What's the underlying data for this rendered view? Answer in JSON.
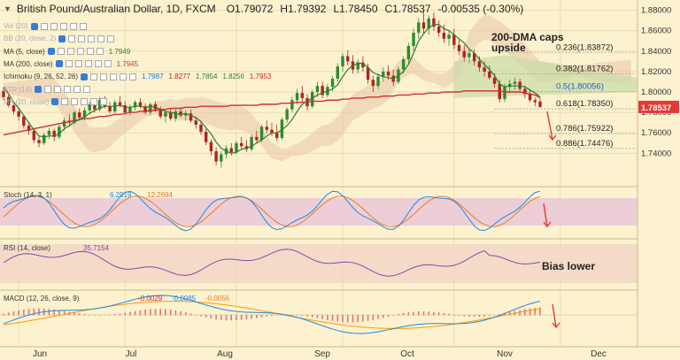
{
  "header": {
    "title": "British Pound/Australian Dollar, 1D, FXCM",
    "ohlc": [
      "O1.79072",
      "H1.79392",
      "L1.78450",
      "C1.78537",
      "-0.00535 (-0.30%)"
    ]
  },
  "overlays": [
    {
      "label": "Vol (20)",
      "values": []
    },
    {
      "label": "BB (20, close, 2)",
      "values": []
    },
    {
      "label": "MA (5, close)",
      "values": [
        "1.7949"
      ],
      "colors": [
        "#2e7d32"
      ]
    },
    {
      "label": "MA (200, close)",
      "values": [
        "1.7945"
      ],
      "colors": [
        "#d32f2f"
      ]
    },
    {
      "label": "Ichimoku (9, 26, 52, 26)",
      "values": [
        "1.7987",
        "1.8277",
        "1.7854",
        "1.8256",
        "1.7953"
      ],
      "colors": [
        "#1976d2",
        "#b71c1c",
        "#2e7d32",
        "#2e7d32",
        "#c62828"
      ]
    },
    {
      "label": "ATR (14)",
      "values": []
    },
    {
      "label": "MA (20, close)",
      "values": []
    }
  ],
  "price_axis": {
    "ticks": [
      "1.88000",
      "1.86000",
      "1.84000",
      "1.82000",
      "1.80000",
      "1.78000",
      "1.76000",
      "1.74000"
    ],
    "current": "1.78537"
  },
  "fib_levels": [
    "0.236(1.83872)",
    "0.382(1.81762)",
    "0.5(1.80056)",
    "0.618(1.78350)",
    "0.786(1.75922)",
    "0.886(1.74476)"
  ],
  "annotations": {
    "dma": "200-DMA caps\nupside",
    "bias": "Bias lower"
  },
  "stoch": {
    "label": "Stoch (14, 3, 1)",
    "k": "6.2919",
    "d": "12.2694",
    "ticks": [
      "100.0000",
      "50.0000",
      "0.0000"
    ]
  },
  "rsi": {
    "label": "RSI (14, close)",
    "value": "35.7154",
    "ticks": [
      "50.0000"
    ]
  },
  "macd": {
    "label": "MACD (12, 26, close, 9)",
    "values": [
      "-0.0029",
      "-0.0085",
      "-0.0056"
    ],
    "ticks": [
      "0.0000"
    ]
  },
  "x_axis": {
    "labels": [
      "Jun",
      "Jul",
      "Aug",
      "Sep",
      "Oct",
      "Nov",
      "Dec"
    ]
  },
  "colors": {
    "bull": "#2e8b2e",
    "bear": "#b22222",
    "ma5": "#2e7d32",
    "ma200": "#d32f2f",
    "cloud": "#e8c6a8",
    "cloud_bull": "#c9dba7",
    "stoch_zone": "#e8c4d8",
    "rsi_zone": "#f0d4c4",
    "current": "#e53935"
  },
  "chart_data": {
    "type": "candlestick",
    "x_range": [
      "2017-05-25",
      "2017-12-10"
    ],
    "ylim": [
      1.71,
      1.89
    ],
    "ohlc": [
      [
        1.801,
        1.804,
        1.792,
        1.795
      ],
      [
        1.795,
        1.797,
        1.785,
        1.787
      ],
      [
        1.787,
        1.79,
        1.778,
        1.781
      ],
      [
        1.781,
        1.785,
        1.772,
        1.776
      ],
      [
        1.776,
        1.778,
        1.764,
        1.767
      ],
      [
        1.767,
        1.771,
        1.758,
        1.762
      ],
      [
        1.762,
        1.764,
        1.75,
        1.753
      ],
      [
        1.753,
        1.757,
        1.746,
        1.75
      ],
      [
        1.75,
        1.76,
        1.748,
        1.758
      ],
      [
        1.758,
        1.765,
        1.754,
        1.762
      ],
      [
        1.762,
        1.764,
        1.752,
        1.756
      ],
      [
        1.756,
        1.768,
        1.754,
        1.766
      ],
      [
        1.766,
        1.775,
        1.762,
        1.772
      ],
      [
        1.772,
        1.778,
        1.766,
        1.77
      ],
      [
        1.77,
        1.782,
        1.768,
        1.78
      ],
      [
        1.78,
        1.784,
        1.772,
        1.775
      ],
      [
        1.775,
        1.785,
        1.772,
        1.782
      ],
      [
        1.782,
        1.79,
        1.778,
        1.788
      ],
      [
        1.788,
        1.792,
        1.78,
        1.783
      ],
      [
        1.783,
        1.795,
        1.781,
        1.792
      ],
      [
        1.792,
        1.796,
        1.784,
        1.786
      ],
      [
        1.786,
        1.79,
        1.779,
        1.781
      ],
      [
        1.781,
        1.792,
        1.779,
        1.79
      ],
      [
        1.79,
        1.796,
        1.785,
        1.787
      ],
      [
        1.787,
        1.791,
        1.778,
        1.78
      ],
      [
        1.78,
        1.788,
        1.777,
        1.785
      ],
      [
        1.785,
        1.792,
        1.782,
        1.79
      ],
      [
        1.79,
        1.794,
        1.784,
        1.786
      ],
      [
        1.786,
        1.789,
        1.778,
        1.78
      ],
      [
        1.78,
        1.79,
        1.777,
        1.788
      ],
      [
        1.788,
        1.791,
        1.781,
        1.783
      ],
      [
        1.783,
        1.786,
        1.774,
        1.776
      ],
      [
        1.776,
        1.782,
        1.77,
        1.78
      ],
      [
        1.78,
        1.784,
        1.772,
        1.774
      ],
      [
        1.774,
        1.783,
        1.771,
        1.781
      ],
      [
        1.781,
        1.785,
        1.775,
        1.777
      ],
      [
        1.777,
        1.782,
        1.772,
        1.779
      ],
      [
        1.779,
        1.783,
        1.77,
        1.772
      ],
      [
        1.772,
        1.776,
        1.764,
        1.768
      ],
      [
        1.768,
        1.772,
        1.758,
        1.761
      ],
      [
        1.761,
        1.764,
        1.748,
        1.751
      ],
      [
        1.751,
        1.754,
        1.738,
        1.742
      ],
      [
        1.742,
        1.746,
        1.728,
        1.732
      ],
      [
        1.732,
        1.742,
        1.726,
        1.739
      ],
      [
        1.739,
        1.748,
        1.735,
        1.745
      ],
      [
        1.745,
        1.75,
        1.738,
        1.741
      ],
      [
        1.741,
        1.752,
        1.739,
        1.75
      ],
      [
        1.75,
        1.756,
        1.744,
        1.747
      ],
      [
        1.747,
        1.753,
        1.741,
        1.744
      ],
      [
        1.744,
        1.758,
        1.742,
        1.756
      ],
      [
        1.756,
        1.762,
        1.75,
        1.753
      ],
      [
        1.753,
        1.768,
        1.751,
        1.766
      ],
      [
        1.766,
        1.772,
        1.76,
        1.763
      ],
      [
        1.763,
        1.77,
        1.757,
        1.76
      ],
      [
        1.76,
        1.768,
        1.752,
        1.755
      ],
      [
        1.755,
        1.775,
        1.753,
        1.773
      ],
      [
        1.773,
        1.785,
        1.77,
        1.783
      ],
      [
        1.783,
        1.795,
        1.78,
        1.792
      ],
      [
        1.792,
        1.803,
        1.788,
        1.799
      ],
      [
        1.799,
        1.806,
        1.79,
        1.794
      ],
      [
        1.794,
        1.798,
        1.782,
        1.786
      ],
      [
        1.786,
        1.802,
        1.784,
        1.8
      ],
      [
        1.8,
        1.81,
        1.795,
        1.806
      ],
      [
        1.806,
        1.81,
        1.794,
        1.797
      ],
      [
        1.797,
        1.808,
        1.795,
        1.805
      ],
      [
        1.805,
        1.816,
        1.801,
        1.813
      ],
      [
        1.813,
        1.828,
        1.81,
        1.825
      ],
      [
        1.825,
        1.838,
        1.82,
        1.835
      ],
      [
        1.835,
        1.841,
        1.826,
        1.83
      ],
      [
        1.83,
        1.836,
        1.818,
        1.822
      ],
      [
        1.822,
        1.832,
        1.818,
        1.829
      ],
      [
        1.829,
        1.835,
        1.82,
        1.824
      ],
      [
        1.824,
        1.828,
        1.808,
        1.812
      ],
      [
        1.812,
        1.816,
        1.8,
        1.806
      ],
      [
        1.806,
        1.818,
        1.803,
        1.815
      ],
      [
        1.815,
        1.824,
        1.81,
        1.82
      ],
      [
        1.82,
        1.826,
        1.812,
        1.816
      ],
      [
        1.816,
        1.822,
        1.806,
        1.81
      ],
      [
        1.81,
        1.825,
        1.808,
        1.822
      ],
      [
        1.822,
        1.835,
        1.818,
        1.832
      ],
      [
        1.832,
        1.848,
        1.828,
        1.845
      ],
      [
        1.845,
        1.862,
        1.84,
        1.858
      ],
      [
        1.858,
        1.872,
        1.852,
        1.868
      ],
      [
        1.868,
        1.88,
        1.858,
        1.862
      ],
      [
        1.862,
        1.875,
        1.856,
        1.872
      ],
      [
        1.872,
        1.878,
        1.86,
        1.864
      ],
      [
        1.864,
        1.87,
        1.854,
        1.858
      ],
      [
        1.858,
        1.866,
        1.848,
        1.852
      ],
      [
        1.852,
        1.86,
        1.845,
        1.856
      ],
      [
        1.856,
        1.862,
        1.842,
        1.846
      ],
      [
        1.846,
        1.852,
        1.836,
        1.84
      ],
      [
        1.84,
        1.846,
        1.83,
        1.834
      ],
      [
        1.834,
        1.842,
        1.828,
        1.838
      ],
      [
        1.838,
        1.842,
        1.826,
        1.83
      ],
      [
        1.83,
        1.835,
        1.82,
        1.824
      ],
      [
        1.824,
        1.83,
        1.815,
        1.82
      ],
      [
        1.82,
        1.826,
        1.812,
        1.814
      ],
      [
        1.814,
        1.818,
        1.804,
        1.808
      ],
      [
        1.808,
        1.812,
        1.79,
        1.793
      ],
      [
        1.793,
        1.808,
        1.79,
        1.805
      ],
      [
        1.805,
        1.812,
        1.8,
        1.808
      ],
      [
        1.808,
        1.814,
        1.802,
        1.81
      ],
      [
        1.81,
        1.813,
        1.8,
        1.803
      ],
      [
        1.803,
        1.806,
        1.794,
        1.798
      ],
      [
        1.798,
        1.802,
        1.79,
        1.792
      ],
      [
        1.792,
        1.795,
        1.786,
        1.79
      ],
      [
        1.7907,
        1.7939,
        1.7845,
        1.7854
      ]
    ],
    "ma5": [
      1.805,
      1.798,
      1.79,
      1.784,
      1.777,
      1.77,
      1.763,
      1.757,
      1.756,
      1.757,
      1.757,
      1.759,
      1.764,
      1.767,
      1.771,
      1.773,
      1.776,
      1.779,
      1.782,
      1.784,
      1.786,
      1.786,
      1.786,
      1.787,
      1.785,
      1.785,
      1.786,
      1.786,
      1.785,
      1.786,
      1.785,
      1.783,
      1.781,
      1.78,
      1.779,
      1.778,
      1.779,
      1.777,
      1.775,
      1.771,
      1.765,
      1.759,
      1.751,
      1.745,
      1.742,
      1.74,
      1.741,
      1.744,
      1.745,
      1.747,
      1.75,
      1.753,
      1.757,
      1.76,
      1.76,
      1.763,
      1.767,
      1.773,
      1.781,
      1.788,
      1.791,
      1.794,
      1.797,
      1.799,
      1.801,
      1.803,
      1.807,
      1.815,
      1.822,
      1.826,
      1.828,
      1.828,
      1.824,
      1.819,
      1.817,
      1.815,
      1.814,
      1.813,
      1.816,
      1.82,
      1.827,
      1.838,
      1.85,
      1.857,
      1.863,
      1.866,
      1.866,
      1.862,
      1.86,
      1.856,
      1.852,
      1.848,
      1.842,
      1.838,
      1.832,
      1.827,
      1.822,
      1.816,
      1.808,
      1.805,
      1.806,
      1.806,
      1.806,
      1.805,
      1.802,
      1.799,
      1.795
    ],
    "ma200": [
      1.758,
      1.759,
      1.76,
      1.761,
      1.762,
      1.763,
      1.764,
      1.765,
      1.766,
      1.767,
      1.768,
      1.769,
      1.77,
      1.771,
      1.772,
      1.773,
      1.774,
      1.774,
      1.775,
      1.776,
      1.776,
      1.777,
      1.778,
      1.778,
      1.779,
      1.78,
      1.78,
      1.781,
      1.781,
      1.782,
      1.782,
      1.783,
      1.783,
      1.784,
      1.784,
      1.784,
      1.785,
      1.785,
      1.785,
      1.786,
      1.786,
      1.786,
      1.786,
      1.786,
      1.786,
      1.787,
      1.787,
      1.787,
      1.787,
      1.787,
      1.787,
      1.788,
      1.788,
      1.788,
      1.788,
      1.789,
      1.789,
      1.789,
      1.79,
      1.79,
      1.79,
      1.791,
      1.791,
      1.791,
      1.792,
      1.792,
      1.792,
      1.793,
      1.793,
      1.794,
      1.794,
      1.794,
      1.795,
      1.795,
      1.795,
      1.796,
      1.796,
      1.796,
      1.797,
      1.797,
      1.797,
      1.798,
      1.798,
      1.798,
      1.799,
      1.799,
      1.799,
      1.8,
      1.8,
      1.8,
      1.8,
      1.801,
      1.801,
      1.801,
      1.801,
      1.801,
      1.801,
      1.801,
      1.801,
      1.8,
      1.8,
      1.8,
      1.8,
      1.799,
      1.798,
      1.797,
      1.7945
    ]
  }
}
